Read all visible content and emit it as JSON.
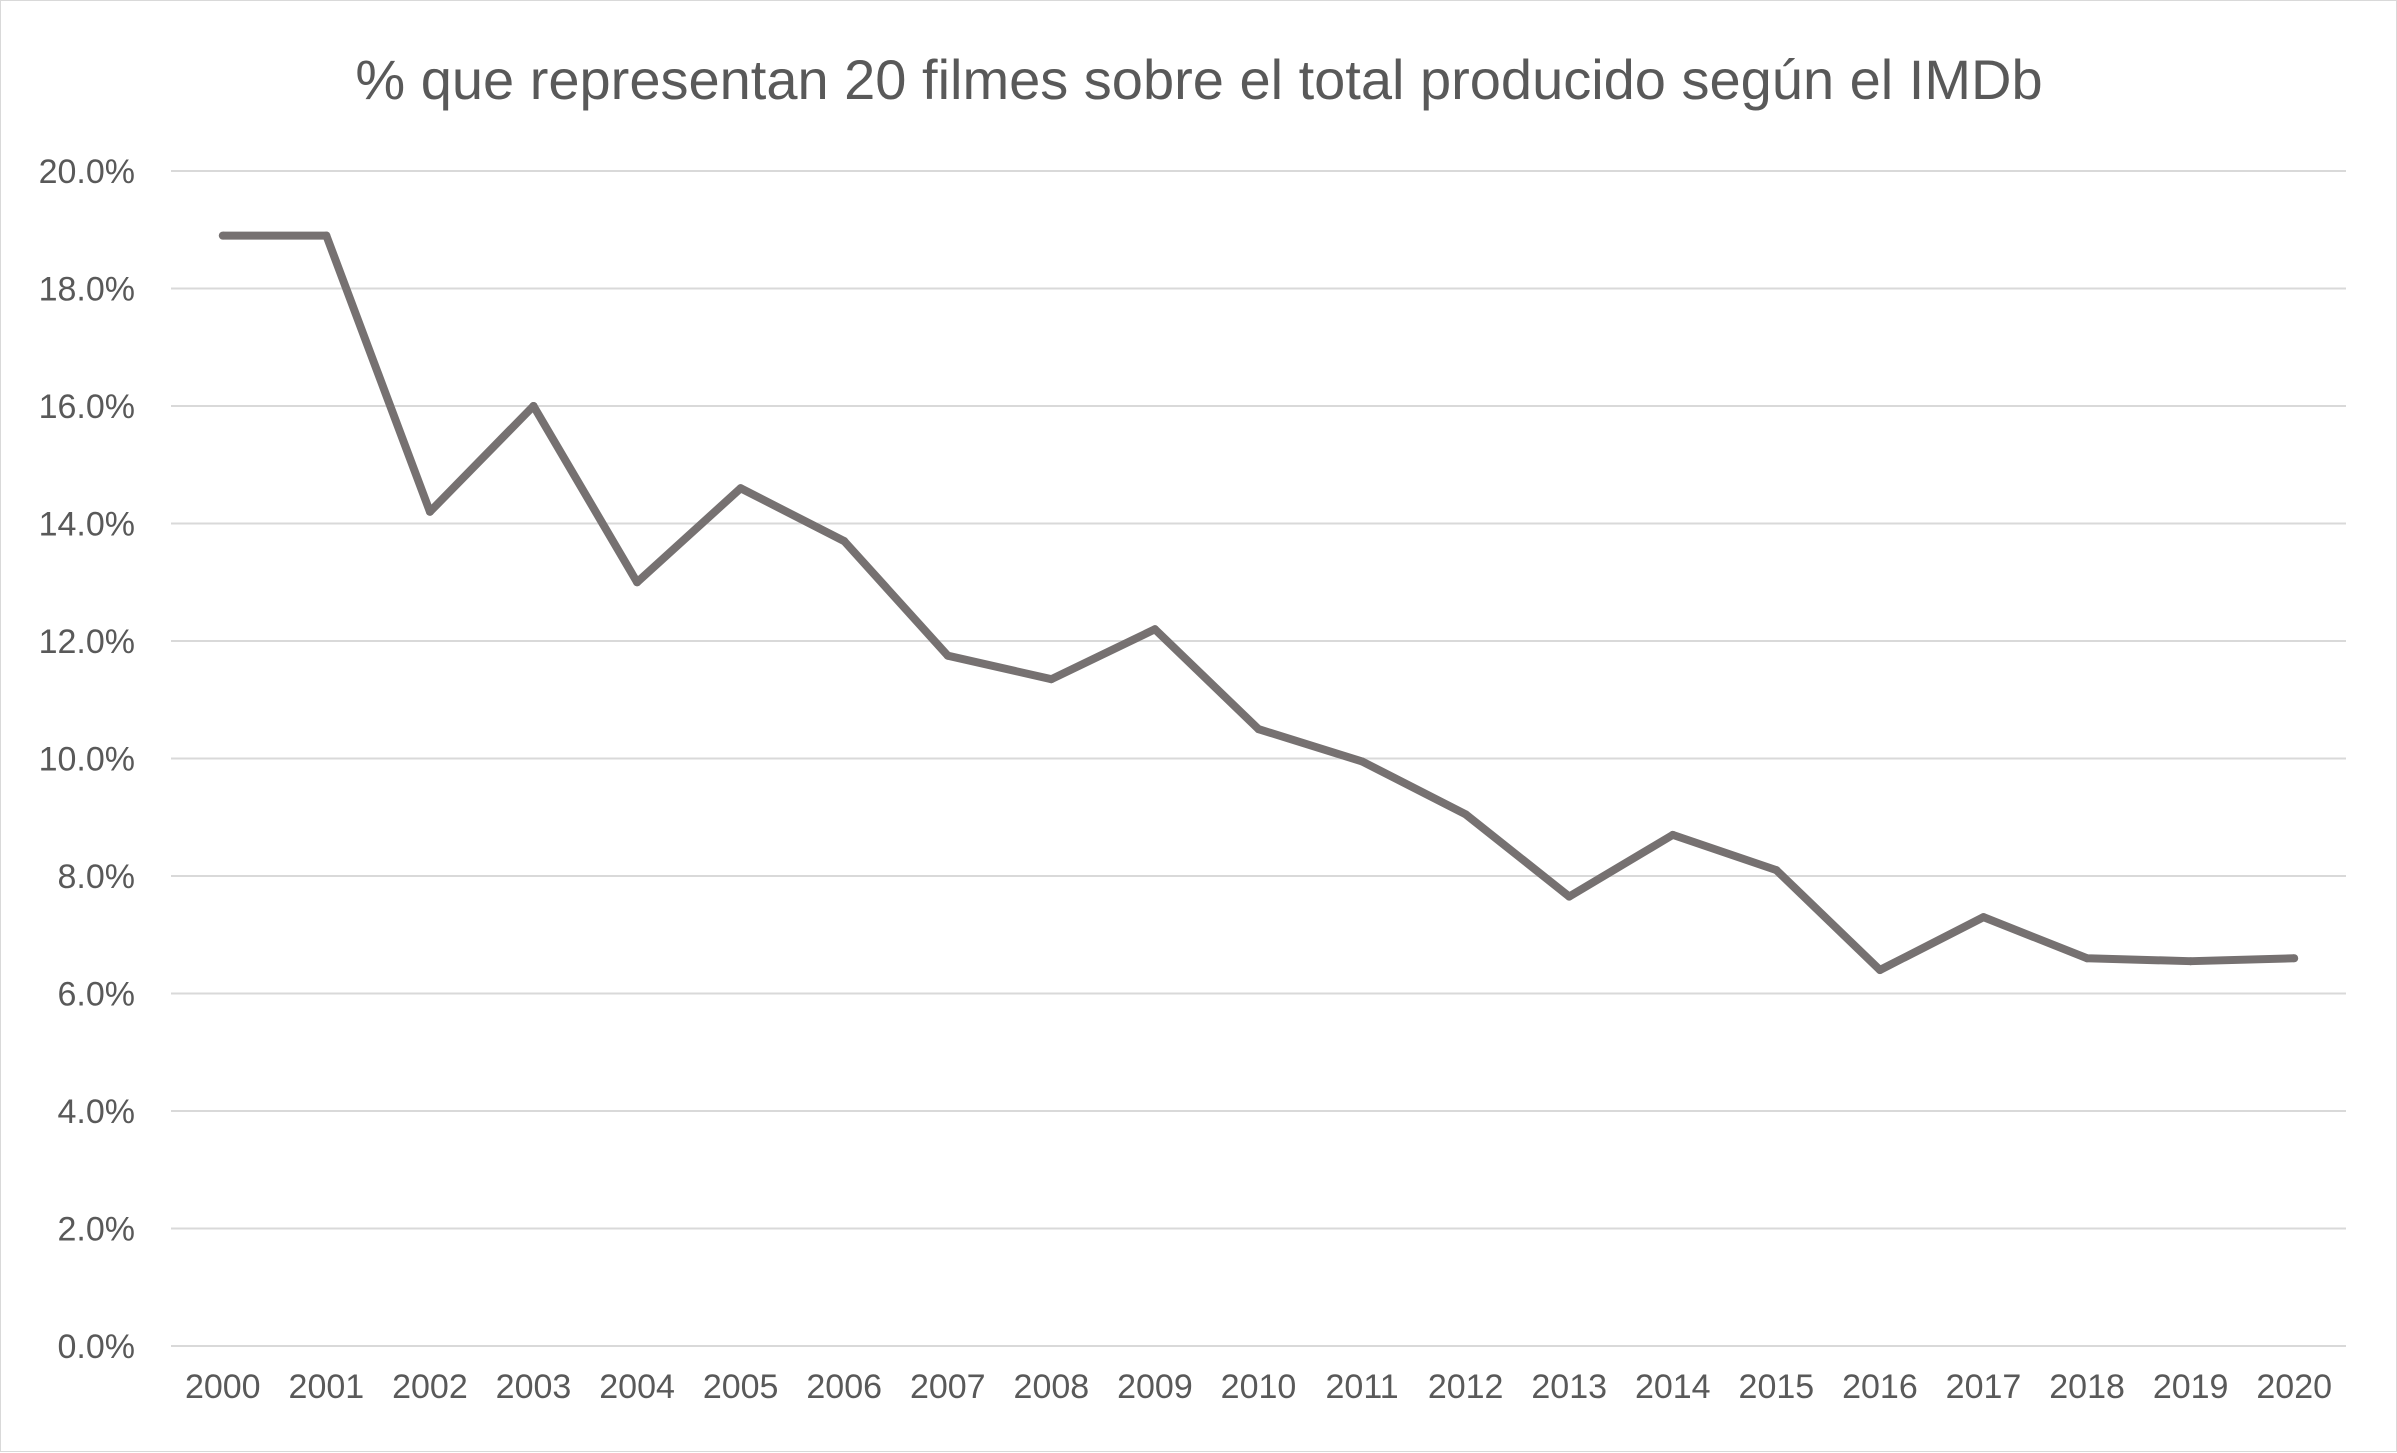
{
  "chart_data": {
    "type": "line",
    "title": "% que representan 20 filmes sobre el total producido según el IMDb",
    "xlabel": "",
    "ylabel": "",
    "categories": [
      "2000",
      "2001",
      "2002",
      "2003",
      "2004",
      "2005",
      "2006",
      "2007",
      "2008",
      "2009",
      "2010",
      "2011",
      "2012",
      "2013",
      "2014",
      "2015",
      "2016",
      "2017",
      "2018",
      "2019",
      "2020"
    ],
    "y_ticks": [
      "0.0%",
      "2.0%",
      "4.0%",
      "6.0%",
      "8.0%",
      "10.0%",
      "12.0%",
      "14.0%",
      "16.0%",
      "18.0%",
      "20.0%"
    ],
    "ylim": [
      0,
      20
    ],
    "y_unit": "%",
    "grid": true,
    "legend": "none",
    "series": [
      {
        "values": [
          18.9,
          18.9,
          14.2,
          16.0,
          13.0,
          14.6,
          13.7,
          11.75,
          11.35,
          12.2,
          10.5,
          9.95,
          9.05,
          7.65,
          8.7,
          8.1,
          6.4,
          7.3,
          6.6,
          6.55,
          6.6
        ],
        "color": "#767171"
      }
    ]
  }
}
